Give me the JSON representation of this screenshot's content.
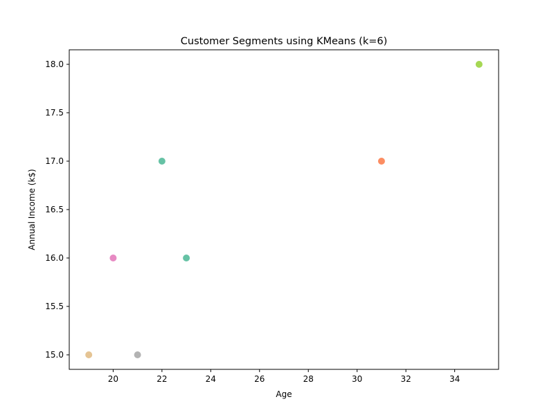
{
  "chart_data": {
    "type": "scatter",
    "title": "Customer Segments using KMeans (k=6)",
    "xlabel": "Age",
    "ylabel": "Annual Income (k$)",
    "xlim": [
      18.2,
      35.8
    ],
    "ylim": [
      14.85,
      18.15
    ],
    "xticks": [
      20,
      22,
      24,
      26,
      28,
      30,
      32,
      34
    ],
    "yticks": [
      15.0,
      15.5,
      16.0,
      16.5,
      17.0,
      17.5,
      18.0
    ],
    "ytick_labels": [
      "15.0",
      "15.5",
      "16.0",
      "16.5",
      "17.0",
      "17.5",
      "18.0"
    ],
    "grid": false,
    "points": [
      {
        "x": 19,
        "y": 15.0,
        "color": "#e5c494"
      },
      {
        "x": 21,
        "y": 15.0,
        "color": "#b3b3b3"
      },
      {
        "x": 20,
        "y": 16.0,
        "color": "#e78ac3"
      },
      {
        "x": 22,
        "y": 17.0,
        "color": "#66c2a5"
      },
      {
        "x": 23,
        "y": 16.0,
        "color": "#66c2a5"
      },
      {
        "x": 31,
        "y": 17.0,
        "color": "#fc8d62"
      },
      {
        "x": 35,
        "y": 18.0,
        "color": "#a6d854"
      }
    ]
  }
}
